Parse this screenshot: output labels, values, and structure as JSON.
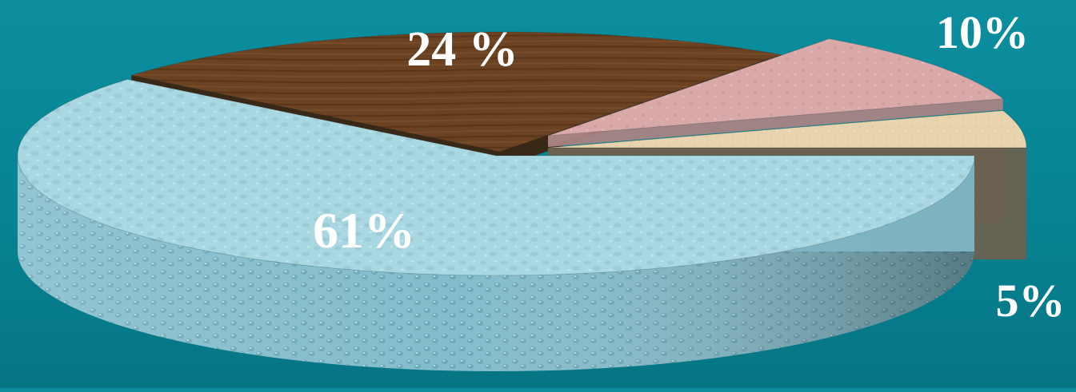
{
  "chart_data": {
    "type": "pie",
    "style": "3d-exploded",
    "slices": [
      {
        "value": 61,
        "label": "61%",
        "color": "#a9d8e2",
        "side_color": "#7fb5c4",
        "texture": "water-droplets"
      },
      {
        "value": 24,
        "label": "24 %",
        "color": "#6b4322",
        "side_color": "#3d230f",
        "texture": "wood"
      },
      {
        "value": 10,
        "label": "10%",
        "color": "#d9a9a9",
        "side_color": "#a98383",
        "texture": "pink-stone"
      },
      {
        "value": 5,
        "label": "5%",
        "color": "#e7d4ae",
        "side_color": "#6a6150",
        "texture": "sand"
      }
    ],
    "background_color": "#07889a",
    "label_color": "#ffffff"
  }
}
